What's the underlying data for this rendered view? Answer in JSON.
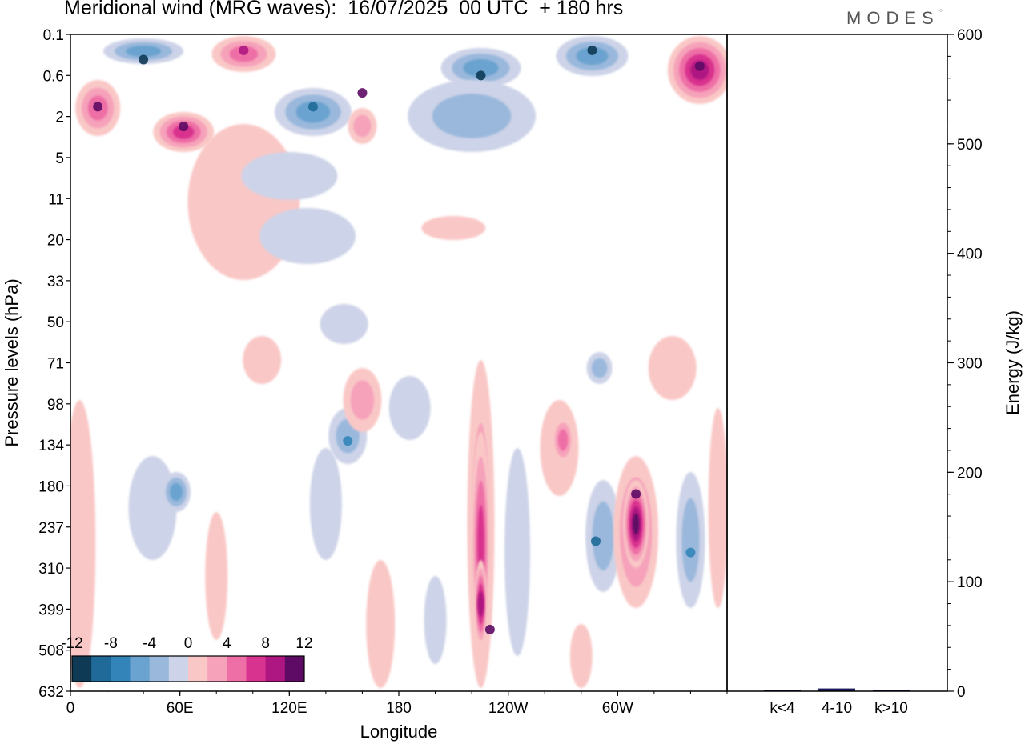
{
  "header": {
    "title": "Meridional wind (MRG waves):  16/07/2025  00 UTC  + 180 hrs",
    "brand": "MODES"
  },
  "colors": {
    "neg": [
      "#0e3a56",
      "#1f6a98",
      "#3385b9",
      "#6aa3cf",
      "#9ab8dc",
      "#cdd3e8"
    ],
    "zero": "#ffffff",
    "pos": [
      "#f9c8c6",
      "#f6a2ba",
      "#ee6ea6",
      "#d8338e",
      "#ae1781",
      "#5d0b64"
    ]
  },
  "chart_data": [
    {
      "type": "heatmap",
      "title": "Meridional wind (MRG waves):  16/07/2025  00 UTC  + 180 hrs",
      "xlabel": "Longitude",
      "ylabel": "Pressure levels (hPa)",
      "x_ticks": [
        "0",
        "60E",
        "120E",
        "180",
        "120W",
        "60W"
      ],
      "y_ticks": [
        "0.1",
        "0.6",
        "2",
        "5",
        "11",
        "20",
        "33",
        "50",
        "71",
        "98",
        "134",
        "180",
        "237",
        "310",
        "399",
        "508",
        "632"
      ],
      "colorbar_labels": [
        "-12",
        "-8",
        "-4",
        "0",
        "4",
        "8",
        "12"
      ],
      "colorbar_range": [
        -12,
        12
      ],
      "features": [
        {
          "lon": 160,
          "level": "1",
          "value": 10,
          "sign": "+"
        },
        {
          "lon": 225,
          "level": "0.6",
          "value": -13
        },
        {
          "lon": 15,
          "level": "1.5",
          "value": 10
        },
        {
          "lon": 40,
          "level": "0.3",
          "value": -11
        },
        {
          "lon": 62,
          "level": "2.5",
          "value": 11
        },
        {
          "lon": 95,
          "level": "0.2",
          "value": 9
        },
        {
          "lon": 133,
          "level": "1.5",
          "value": -9
        },
        {
          "lon": 286,
          "level": "0.2",
          "value": -11
        },
        {
          "lon": 345,
          "level": "0.4",
          "value": 14
        },
        {
          "lon": 310,
          "level": "190",
          "value": 14
        },
        {
          "lon": 230,
          "level": "450",
          "value": 10
        },
        {
          "lon": 288,
          "level": "260",
          "value": -8
        },
        {
          "lon": 340,
          "level": "280",
          "value": -7
        },
        {
          "lon": 152,
          "level": "130",
          "value": -7
        }
      ]
    },
    {
      "type": "bar",
      "categories": [
        "k<4",
        "4-10",
        "k>10"
      ],
      "values": [
        0.8,
        2.5,
        0.4
      ],
      "ylabel": "Energy (J/kg)",
      "ylim": [
        0,
        600
      ],
      "y_ticks": [
        "0",
        "100",
        "200",
        "300",
        "400",
        "500",
        "600"
      ],
      "bar_color": "#1a1a5e"
    }
  ]
}
